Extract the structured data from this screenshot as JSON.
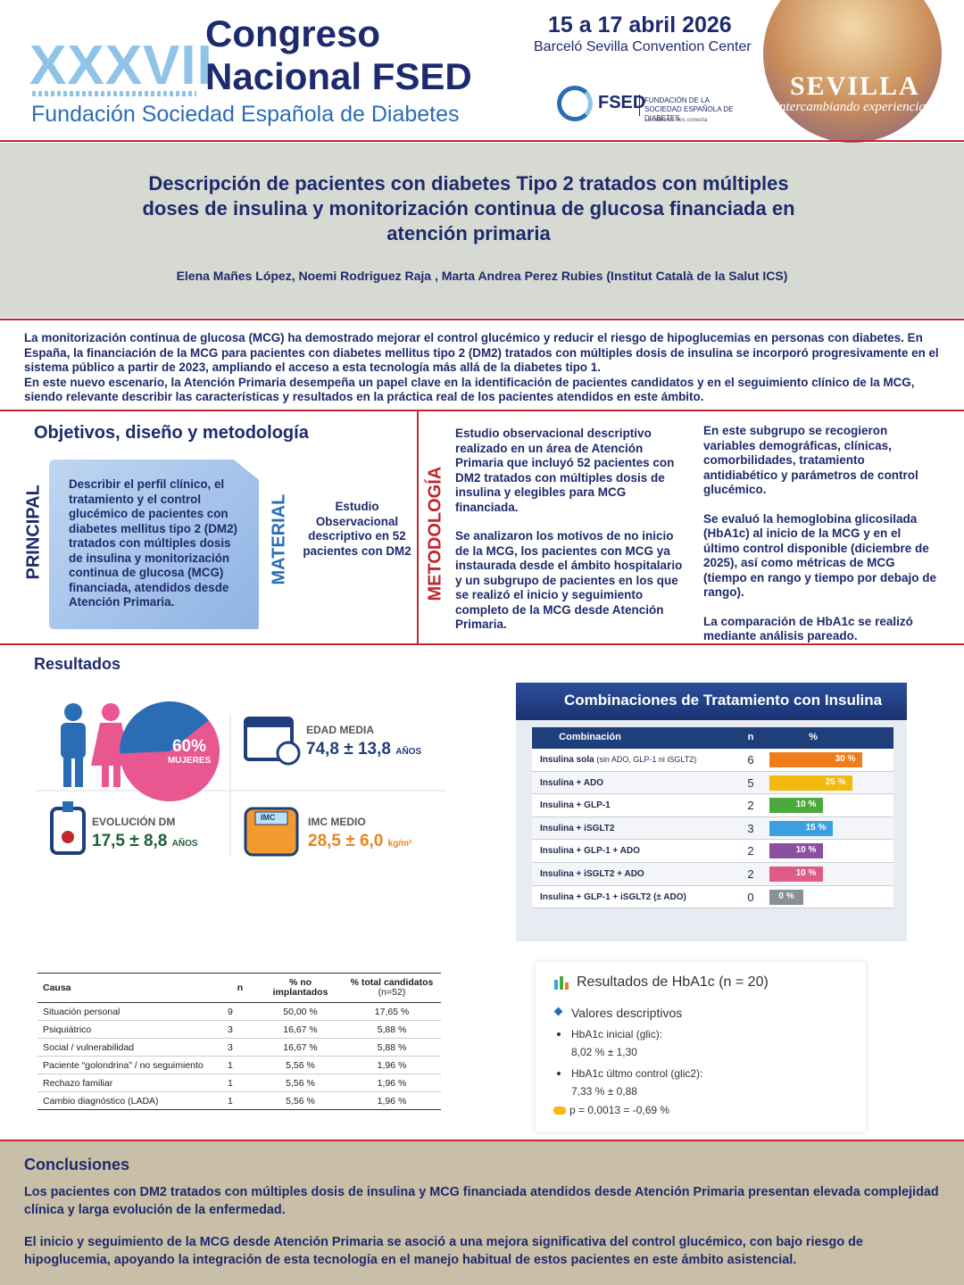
{
  "header": {
    "edition": "XXXVII",
    "congress": "Congreso",
    "congress_line2": "Nacional FSED",
    "foundation": "Fundación Sociedad Española de Diabetes",
    "dates": "15 a 17 abril 2026",
    "venue": "Barceló Sevilla Convention Center",
    "logo": {
      "acronym": "FSED",
      "name": "FUNDACIÓN DE LA SOCIEDAD ESPAÑOLA DE DIABETES",
      "tagline": "La diabetes nos conecta"
    },
    "city": "SEVILLA",
    "slogan": "Intercambiando experiencias"
  },
  "title": "Descripción de pacientes con diabetes Tipo 2 tratados con múltiples doses de insulina y monitorización continua de glucosa financiada en atención primaria",
  "authors": "Elena Mañes López, Noemi Rodriguez Raja , Marta Andrea Perez Rubies (Institut Català de la Salut ICS)",
  "introduction": [
    "La monitorización continua de glucosa (MCG) ha demostrado mejorar el control glucémico y reducir el riesgo de hipoglucemias en personas con diabetes. En España, la financiación de la MCG para pacientes con diabetes mellitus tipo 2 (DM2) tratados con múltiples dosis de insulina se incorporó progresivamente en el sistema público a partir de 2023, ampliando el acceso a esta tecnología más allá de la diabetes tipo 1.",
    "En este nuevo escenario, la Atención Primaria desempeña un papel clave en la identificación de pacientes candidatos y en el seguimiento clínico de la MCG, siendo relevante describir las características y resultados en la práctica real de los pacientes atendidos en este ámbito."
  ],
  "methods": {
    "heading": "Objetivos, diseño y metodología",
    "principal_label": "PRINCIPAL",
    "principal_text": "Describir el perfil clínico, el tratamiento y el control glucémico de pacientes con diabetes mellitus tipo 2 (DM2) tratados con múltiples dosis de insulina y monitorización continua de glucosa (MCG) financiada, atendidos desde Atención Primaria.",
    "material_label": "MATERIAL",
    "material_text": "Estudio Observacional descriptivo en 52 pacientes con DM2",
    "methodology_label": "METODOLOGÍA",
    "methodology_col1": [
      "Estudio observacional descriptivo realizado en un área de Atención Primaria que incluyó 52 pacientes con DM2 tratados con múltiples dosis de insulina y elegibles para MCG financiada.",
      "Se analizaron los motivos de no inicio de la MCG, los pacientes con MCG ya instaurada desde el ámbito hospitalario y un subgrupo de pacientes en los que se realizó el inicio y seguimiento completo de la MCG desde Atención Primaria."
    ],
    "methodology_col2": [
      "En este subgrupo se recogieron variables demográficas, clínicas, comorbilidades, tratamiento antidiabético y parámetros de control glucémico.",
      "Se evaluó la hemoglobina glicosilada (HbA1c) al inicio de la MCG y en el último control disponible (diciembre de 2025), así como métricas de MCG (tiempo en rango y tiempo por debajo de rango).",
      "La comparación de HbA1c se realizó mediante análisis pareado."
    ]
  },
  "results": {
    "heading": "Resultados",
    "demographics": {
      "women": {
        "value": 60,
        "label": "60%"
      },
      "women_caption": "MUJERES",
      "age": {
        "label": "EDAD MEDIA",
        "value": "74,8 ± 13,8",
        "unit": "AÑOS"
      },
      "evolution": {
        "label": "EVOLUCIÓN DM",
        "value": "17,5 ± 8,8",
        "unit": "AÑOS"
      },
      "bmi": {
        "label": "IMC MEDIO",
        "value": "28,5 ± 6,0",
        "unit": "kg/m²",
        "icon": "IMC"
      }
    },
    "insulin_table": {
      "title": "Combinaciones de Tratamiento con Insulina",
      "headers": [
        "Combinación",
        "n",
        "%"
      ],
      "rows": [
        {
          "combination": "Insulina sola",
          "note": "(sin ADO, GLP-1 ni iSGLT2)",
          "n": 6,
          "pct": {
            "value": 30,
            "label": "30 %"
          },
          "color": "#f07d1b"
        },
        {
          "combination": "Insulina + ADO",
          "n": 5,
          "pct": {
            "value": 25,
            "label": "25 %"
          },
          "color": "#f2b90f"
        },
        {
          "combination": "Insulina + GLP-1",
          "n": 2,
          "pct": {
            "value": 10,
            "label": "10 %"
          },
          "color": "#4caa3c"
        },
        {
          "combination": "Insulina + iSGLT2",
          "n": 3,
          "pct": {
            "value": 15,
            "label": "15 %"
          },
          "color": "#3d9ee0"
        },
        {
          "combination": "Insulina + GLP-1 + ADO",
          "n": 2,
          "pct": {
            "value": 10,
            "label": "10 %"
          },
          "color": "#8b4fa0"
        },
        {
          "combination": "Insulina + iSGLT2 + ADO",
          "n": 2,
          "pct": {
            "value": 10,
            "label": "10 %"
          },
          "color": "#e05a87"
        },
        {
          "combination": "Insulina + GLP-1 + iSGLT2 (± ADO)",
          "n": 0,
          "pct": {
            "value": 0,
            "label": "0 %"
          },
          "color": "#8a9096"
        }
      ]
    },
    "causes_table": {
      "headers": [
        "Causa",
        "n",
        "% no implantados",
        "% total candidatos"
      ],
      "header_note": "(n=52)",
      "rows": [
        [
          "Situación personal",
          9,
          "50,00 %",
          "17,65 %"
        ],
        [
          "Psiquiátrico",
          3,
          "16,67 %",
          "5,88 %"
        ],
        [
          "Social / vulnerabilidad",
          3,
          "16,67 %",
          "5,88 %"
        ],
        [
          "Paciente “golondrina” / no seguimiento",
          1,
          "5,56 %",
          "1,96 %"
        ],
        [
          "Rechazo familiar",
          1,
          "5,56 %",
          "1,96 %"
        ],
        [
          "Cambio diagnóstico (LADA)",
          1,
          "5,56 %",
          "1,96 %"
        ]
      ]
    },
    "hba1c": {
      "title": "Resultados de HbA1c (n = 20)",
      "subtitle": "Valores descriptivos",
      "items": [
        {
          "label": "HbA1c inicial (glic):",
          "value": "8,02 % ± 1,30"
        },
        {
          "label": "HbA1c últmo control (glic2):",
          "value": "7,33 % ± 0,88"
        }
      ],
      "p": "p = 0,0013 = -0,69 %"
    }
  },
  "conclusions": {
    "heading": "Conclusiones",
    "paragraphs": [
      "Los pacientes con DM2 tratados con múltiples dosis de insulina y MCG financiada atendidos desde Atención Primaria presentan elevada complejidad clínica y larga evolución de la enfermedad.",
      "El inicio y seguimiento de la MCG desde Atención Primaria se asoció a una mejora significativa del control glucémico, con bajo riesgo de hipoglucemia, apoyando la integración de esta tecnología en el manejo habitual de estos pacientes en este ámbito asistencial."
    ]
  }
}
